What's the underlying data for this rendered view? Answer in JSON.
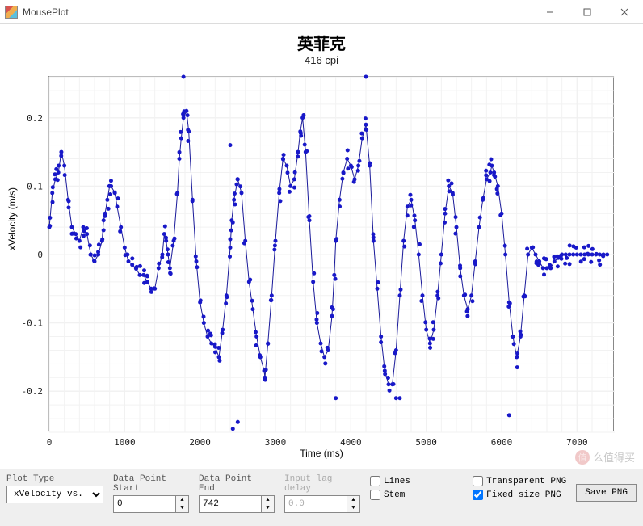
{
  "window": {
    "title": "MousePlot"
  },
  "chart": {
    "type": "scatter+line",
    "title": "英菲克",
    "subtitle": "416 cpi",
    "xlabel": "Time (ms)",
    "ylabel": "xVelocity (m/s)",
    "xlim": [
      0,
      7500
    ],
    "ylim": [
      -0.26,
      0.26
    ],
    "xtick_step": 1000,
    "ytick_step": 0.1,
    "xminor_count": 4,
    "yminor_count": 4,
    "background_color": "#ffffff",
    "grid_color": "#e6e6e6",
    "minor_grid_color": "#f2f2f2",
    "line_color": "#1a1a9a",
    "point_color": "#1818c8",
    "point_radius": 2.5,
    "line_width": 1,
    "label_fontsize": 12,
    "tick_fontsize": 11
  },
  "toolbar": {
    "plot_type_label": "Plot Type",
    "plot_type_value": "xVelocity vs. Ti",
    "data_start_label": "Data Point\nStart",
    "data_start_value": "0",
    "data_end_label": "Data Point\nEnd",
    "data_end_value": "742",
    "input_lag_label": "Input lag\ndelay",
    "input_lag_value": "0.0",
    "lines_label": "Lines",
    "stem_label": "Stem",
    "transparent_png_label": "Transparent PNG",
    "fixed_size_png_label": "Fixed size PNG",
    "lines_checked": false,
    "stem_checked": false,
    "transparent_checked": false,
    "fixed_size_checked": true,
    "save_label": "Save PNG"
  },
  "watermark": {
    "text": "么值得买"
  },
  "series": {
    "x": [
      0,
      40,
      80,
      120,
      160,
      200,
      250,
      300,
      350,
      400,
      450,
      500,
      550,
      600,
      650,
      700,
      720,
      740,
      770,
      800,
      820,
      870,
      900,
      950,
      1000,
      1050,
      1100,
      1150,
      1200,
      1250,
      1300,
      1350,
      1400,
      1450,
      1500,
      1525,
      1550,
      1575,
      1600,
      1650,
      1700,
      1725,
      1750,
      1780,
      1820,
      1850,
      1900,
      1950,
      2000,
      2050,
      2100,
      2150,
      2200,
      2250,
      2300,
      2350,
      2400,
      2420,
      2450,
      2500,
      2550,
      2600,
      2650,
      2700,
      2750,
      2800,
      2850,
      2860,
      2900,
      2950,
      3000,
      3050,
      3100,
      3150,
      3200,
      3250,
      3300,
      3330,
      3360,
      3400,
      3450,
      3500,
      3550,
      3600,
      3650,
      3700,
      3750,
      3780,
      3800,
      3850,
      3900,
      3950,
      4000,
      4050,
      4100,
      4150,
      4200,
      4250,
      4300,
      4350,
      4400,
      4450,
      4500,
      4550,
      4600,
      4650,
      4700,
      4750,
      4800,
      4850,
      4900,
      4950,
      5000,
      5050,
      5100,
      5150,
      5200,
      5250,
      5300,
      5350,
      5400,
      5450,
      5500,
      5550,
      5600,
      5650,
      5700,
      5750,
      5800,
      5850,
      5870,
      5900,
      5950,
      6000,
      6050,
      6100,
      6150,
      6200,
      6250,
      6300,
      6350,
      6400,
      6450,
      6500,
      6550,
      6600,
      6650,
      6700,
      6750,
      6800,
      6850,
      6900,
      6950,
      7000,
      7050,
      7100,
      7150,
      7200,
      7250,
      7300,
      7350,
      7400
    ],
    "y": [
      0.04,
      0.09,
      0.11,
      0.12,
      0.15,
      0.13,
      0.08,
      0.04,
      0.03,
      0.02,
      0.04,
      0.03,
      0.0,
      -0.01,
      0.0,
      0.02,
      0.05,
      0.06,
      0.08,
      0.1,
      0.1,
      0.09,
      0.07,
      0.04,
      0.01,
      -0.01,
      -0.015,
      -0.02,
      -0.03,
      -0.03,
      -0.04,
      -0.05,
      -0.05,
      -0.02,
      0.0,
      0.03,
      0.02,
      0.0,
      -0.02,
      0.02,
      0.09,
      0.14,
      0.17,
      0.2,
      0.21,
      0.18,
      0.08,
      -0.01,
      -0.07,
      -0.1,
      -0.12,
      -0.13,
      -0.135,
      -0.15,
      -0.11,
      -0.06,
      0.01,
      0.05,
      0.08,
      0.11,
      0.09,
      0.02,
      -0.04,
      -0.08,
      -0.12,
      -0.15,
      -0.17,
      -0.18,
      -0.13,
      -0.06,
      0.02,
      0.09,
      0.14,
      0.13,
      0.1,
      0.11,
      0.15,
      0.18,
      0.2,
      0.15,
      0.05,
      -0.04,
      -0.1,
      -0.13,
      -0.15,
      -0.14,
      -0.09,
      -0.03,
      0.02,
      0.08,
      0.12,
      0.14,
      0.13,
      0.11,
      0.13,
      0.17,
      0.19,
      0.13,
      0.02,
      -0.05,
      -0.12,
      -0.17,
      -0.19,
      -0.19,
      -0.14,
      -0.06,
      0.02,
      0.07,
      0.08,
      0.05,
      0.0,
      -0.06,
      -0.11,
      -0.13,
      -0.11,
      -0.06,
      0.0,
      0.06,
      0.1,
      0.09,
      0.04,
      -0.02,
      -0.06,
      -0.08,
      -0.06,
      -0.01,
      0.04,
      0.08,
      0.11,
      0.12,
      0.13,
      0.12,
      0.1,
      0.06,
      0.0,
      -0.07,
      -0.12,
      -0.15,
      -0.12,
      -0.06,
      0.0,
      0.01,
      0.0,
      -0.01,
      -0.02,
      -0.02,
      -0.02,
      -0.01,
      -0.005,
      0.0,
      0.0,
      0.0,
      0.0,
      0.0,
      0.0,
      0.0,
      0.0,
      0.0,
      0.0,
      0.0,
      0.0,
      0.0
    ],
    "outliers_x": [
      1780,
      2500,
      2435,
      2400,
      3800,
      4200,
      4600,
      4650,
      6100
    ],
    "outliers_y": [
      0.26,
      -0.245,
      -0.255,
      0.16,
      -0.21,
      0.26,
      -0.21,
      -0.21,
      -0.235
    ]
  }
}
